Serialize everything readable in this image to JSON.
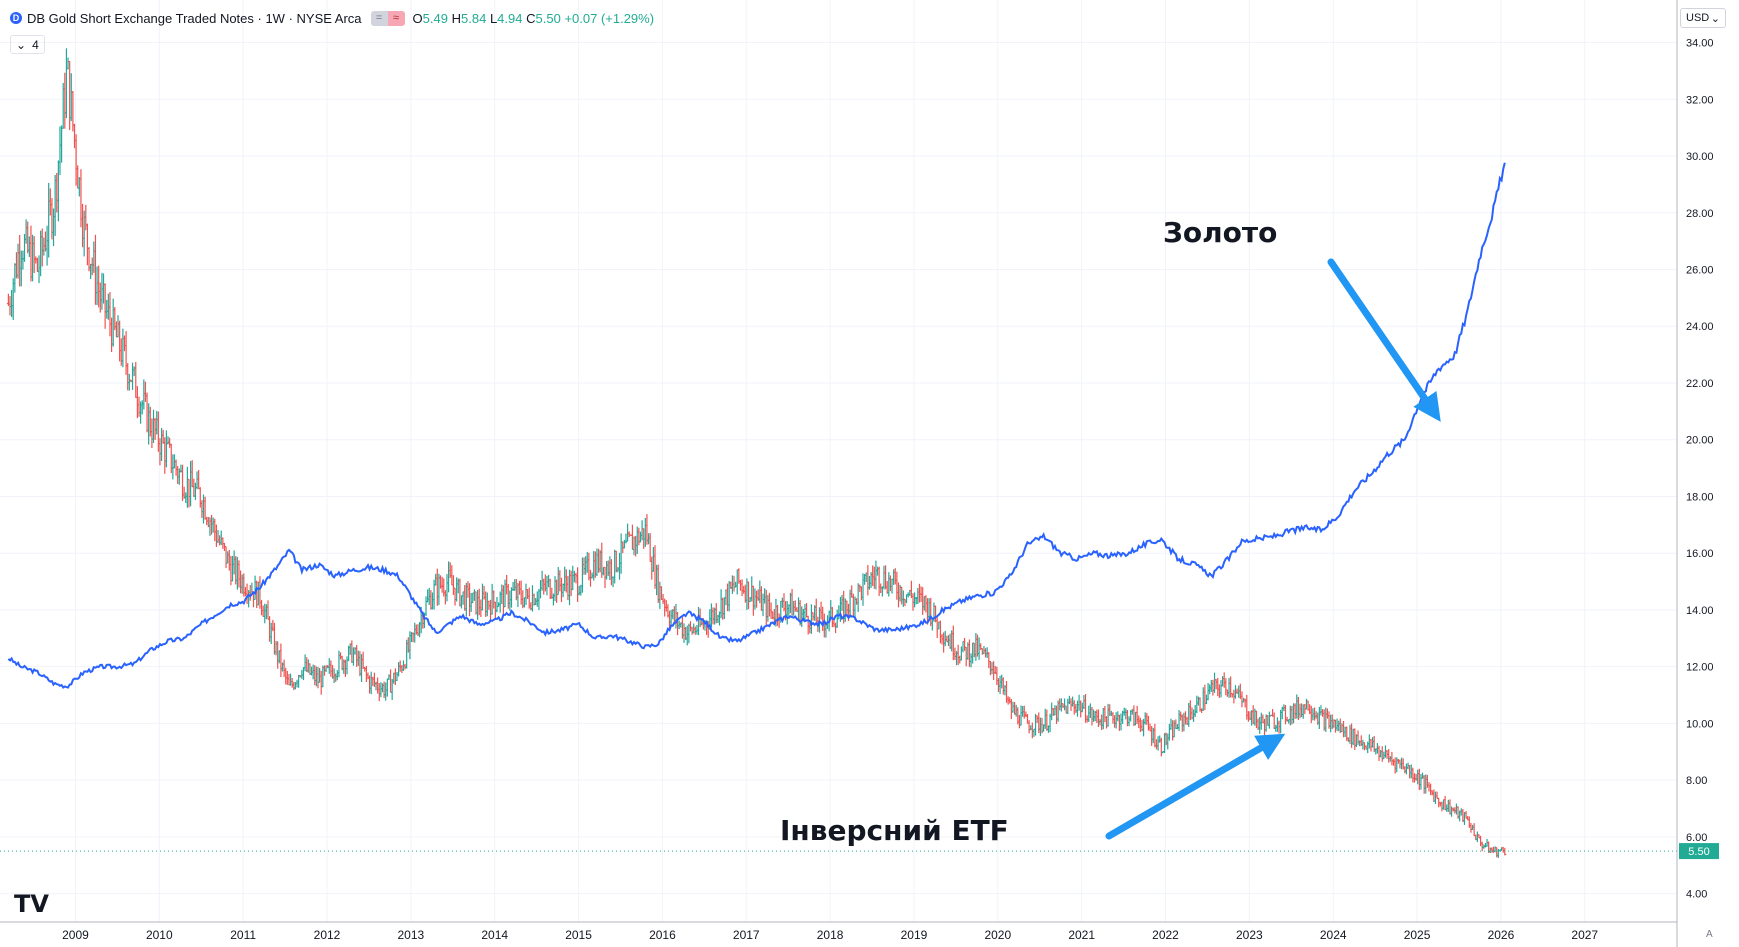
{
  "legend": {
    "symbol_icon": "D",
    "title": "DB Gold Short Exchange Traded Notes · 1W · NYSE Arca",
    "pill_left": "=",
    "pill_right": "≈",
    "o_label": "O",
    "o_value": "5.49",
    "h_label": "H",
    "h_value": "5.84",
    "l_label": "L",
    "l_value": "4.94",
    "c_label": "C",
    "c_value": "5.50",
    "change": "+0.07 (+1.29%)",
    "collapse_count": "4"
  },
  "currency": "USD",
  "auto_label": "A",
  "annotations": {
    "gold": "Золото",
    "inverse": "Інверсний ETF"
  },
  "colors": {
    "up": "#26a69a",
    "down": "#ef5350",
    "gold_line": "#2962ff",
    "arrow": "#2196f3",
    "grid": "#f0f3fa",
    "price_tag": "#22ab94"
  },
  "chart_data": {
    "type": "line",
    "title": "DB Gold Short Exchange Traded Notes",
    "interval": "1W",
    "exchange": "NYSE Arca",
    "xlabel": "",
    "ylabel": "",
    "x_ticks": [
      "2009",
      "2010",
      "2011",
      "2012",
      "2013",
      "2014",
      "2015",
      "2016",
      "2017",
      "2018",
      "2019",
      "2020",
      "2021",
      "2022",
      "2023",
      "2024",
      "2025",
      "2026",
      "2027"
    ],
    "y_ticks": [
      "4.00",
      "6.00",
      "8.00",
      "10.00",
      "12.00",
      "14.00",
      "16.00",
      "18.00",
      "20.00",
      "22.00",
      "24.00",
      "26.00",
      "28.00",
      "30.00",
      "32.00",
      "34.00"
    ],
    "xlim": [
      2008.1,
      2028.1
    ],
    "ylim": [
      3.0,
      35.5
    ],
    "last_price": "5.50",
    "grid": true,
    "series": [
      {
        "name": "DB Gold Short Exchange Traded Notes",
        "style": "ohlc-bars",
        "x": [
          2008.2,
          2008.35,
          2008.55,
          2008.75,
          2008.9,
          2009.1,
          2009.3,
          2009.5,
          2009.7,
          2009.9,
          2010.1,
          2010.3,
          2010.5,
          2010.7,
          2010.85,
          2011.0,
          2011.2,
          2011.4,
          2011.55,
          2011.7,
          2011.9,
          2012.1,
          2012.3,
          2012.5,
          2012.7,
          2012.85,
          2013.0,
          2013.15,
          2013.3,
          2013.45,
          2013.6,
          2013.8,
          2014.0,
          2014.2,
          2014.4,
          2014.6,
          2014.8,
          2015.0,
          2015.2,
          2015.4,
          2015.6,
          2015.8,
          2015.95,
          2016.1,
          2016.3,
          2016.5,
          2016.7,
          2016.9,
          2017.1,
          2017.3,
          2017.5,
          2017.7,
          2017.9,
          2018.1,
          2018.3,
          2018.55,
          2018.75,
          2018.95,
          2019.15,
          2019.35,
          2019.55,
          2019.75,
          2019.95,
          2020.15,
          2020.35,
          2020.55,
          2020.75,
          2020.95,
          2021.15,
          2021.35,
          2021.55,
          2021.75,
          2021.95,
          2022.15,
          2022.35,
          2022.55,
          2022.75,
          2022.9,
          2023.1,
          2023.3,
          2023.5,
          2023.7,
          2023.85,
          2024.05,
          2024.25,
          2024.45,
          2024.65,
          2024.85,
          2025.05,
          2025.25,
          2025.45,
          2025.6,
          2025.75,
          2025.9,
          2026.05
        ],
        "values": [
          24.8,
          27.0,
          26.0,
          28.5,
          33.0,
          27.5,
          25.0,
          23.5,
          22.0,
          20.5,
          19.5,
          18.5,
          18.0,
          16.5,
          15.5,
          15.0,
          14.5,
          12.5,
          11.2,
          12.0,
          11.5,
          12.0,
          12.5,
          11.5,
          11.2,
          11.8,
          12.8,
          14.0,
          14.8,
          15.0,
          14.5,
          14.2,
          14.3,
          14.6,
          14.4,
          14.8,
          14.9,
          15.0,
          15.7,
          15.5,
          16.3,
          16.8,
          14.8,
          13.8,
          13.2,
          13.5,
          14.2,
          15.0,
          14.5,
          13.9,
          14.2,
          13.8,
          13.6,
          13.8,
          14.5,
          15.3,
          14.9,
          14.5,
          14.2,
          13.2,
          12.5,
          12.6,
          12.0,
          10.5,
          10.0,
          10.0,
          10.5,
          10.7,
          10.2,
          10.2,
          10.3,
          10.0,
          9.2,
          10.0,
          10.5,
          11.2,
          11.4,
          10.8,
          10.0,
          10.1,
          10.4,
          10.7,
          10.2,
          9.9,
          9.5,
          9.2,
          8.8,
          8.5,
          8.0,
          7.3,
          6.9,
          6.6,
          5.8,
          5.5,
          5.5
        ]
      },
      {
        "name": "Gold",
        "style": "line",
        "x": [
          2008.2,
          2008.35,
          2008.55,
          2008.75,
          2008.9,
          2009.1,
          2009.3,
          2009.5,
          2009.7,
          2009.9,
          2010.1,
          2010.3,
          2010.5,
          2010.7,
          2010.85,
          2011.0,
          2011.2,
          2011.4,
          2011.55,
          2011.7,
          2011.9,
          2012.1,
          2012.3,
          2012.5,
          2012.7,
          2012.85,
          2013.0,
          2013.15,
          2013.3,
          2013.45,
          2013.6,
          2013.8,
          2014.0,
          2014.2,
          2014.4,
          2014.6,
          2014.8,
          2015.0,
          2015.2,
          2015.4,
          2015.6,
          2015.8,
          2015.95,
          2016.1,
          2016.3,
          2016.5,
          2016.7,
          2016.9,
          2017.1,
          2017.3,
          2017.5,
          2017.7,
          2017.9,
          2018.1,
          2018.3,
          2018.55,
          2018.75,
          2018.95,
          2019.15,
          2019.35,
          2019.55,
          2019.75,
          2019.95,
          2020.15,
          2020.35,
          2020.55,
          2020.75,
          2020.95,
          2021.15,
          2021.35,
          2021.55,
          2021.75,
          2021.95,
          2022.15,
          2022.35,
          2022.55,
          2022.75,
          2022.9,
          2023.1,
          2023.3,
          2023.5,
          2023.7,
          2023.85,
          2024.05,
          2024.25,
          2024.45,
          2024.65,
          2024.85,
          2025.05,
          2025.25,
          2025.45,
          2025.6,
          2025.75,
          2025.9,
          2026.05
        ],
        "values": [
          12.3,
          12.0,
          11.8,
          11.4,
          11.3,
          11.8,
          12.0,
          12.0,
          12.1,
          12.6,
          12.9,
          13.0,
          13.5,
          13.9,
          14.2,
          14.3,
          14.8,
          15.5,
          16.1,
          15.4,
          15.6,
          15.2,
          15.4,
          15.5,
          15.4,
          15.2,
          14.5,
          13.8,
          13.2,
          13.5,
          13.8,
          13.5,
          13.6,
          13.9,
          13.6,
          13.2,
          13.3,
          13.5,
          13.0,
          13.1,
          12.9,
          12.7,
          12.8,
          13.4,
          13.9,
          13.6,
          13.0,
          12.9,
          13.2,
          13.5,
          13.8,
          13.6,
          13.5,
          13.8,
          13.7,
          13.3,
          13.3,
          13.4,
          13.6,
          14.0,
          14.3,
          14.5,
          14.6,
          15.2,
          16.3,
          16.6,
          16.0,
          15.8,
          16.0,
          15.9,
          16.0,
          16.3,
          16.5,
          15.8,
          15.6,
          15.2,
          15.8,
          16.4,
          16.5,
          16.6,
          16.8,
          16.9,
          16.8,
          17.3,
          18.2,
          18.8,
          19.5,
          20.0,
          21.5,
          22.5,
          23.0,
          24.5,
          26.5,
          28.0,
          29.8
        ]
      }
    ]
  }
}
